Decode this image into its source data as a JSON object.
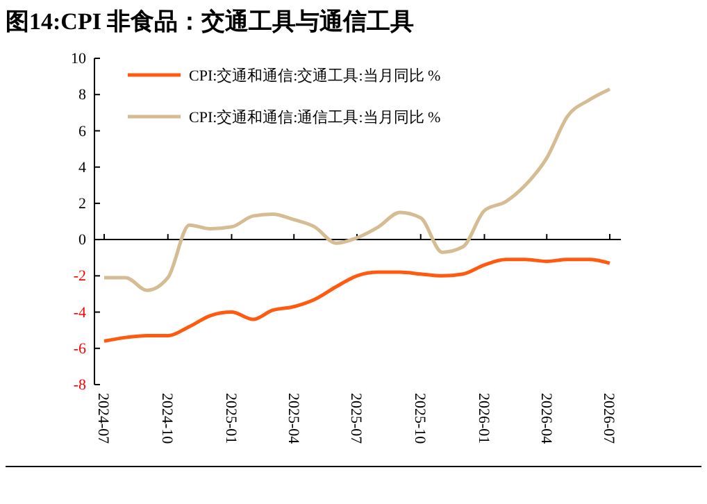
{
  "chart_data": {
    "type": "line",
    "title": "图14:CPI 非食品：交通工具与通信工具",
    "x": [
      "2024-07",
      "2024-08",
      "2024-09",
      "2024-10",
      "2024-11",
      "2024-12",
      "2025-01",
      "2025-02",
      "2025-03",
      "2025-04",
      "2025-05",
      "2025-06",
      "2025-07",
      "2025-08",
      "2025-09",
      "2025-10",
      "2025-11",
      "2025-12",
      "2026-01",
      "2026-02",
      "2026-03",
      "2026-04",
      "2026-05",
      "2026-06",
      "2026-07"
    ],
    "series": [
      {
        "name": "CPI:交通和通信:交通工具:当月同比 %",
        "color": "#ff5a0f",
        "values": [
          -5.6,
          -5.4,
          -5.3,
          -5.3,
          -4.8,
          -4.2,
          -4.0,
          -4.4,
          -3.9,
          -3.7,
          -3.3,
          -2.6,
          -2.0,
          -1.8,
          -1.8,
          -1.9,
          -2.0,
          -1.9,
          -1.4,
          -1.1,
          -1.1,
          -1.2,
          -1.1,
          -1.1,
          -1.3
        ]
      },
      {
        "name": "CPI:交通和通信:通信工具:当月同比 %",
        "color": "#d6bc93",
        "values": [
          -2.1,
          -2.1,
          -2.8,
          -2.1,
          0.8,
          0.6,
          0.7,
          1.3,
          1.4,
          1.1,
          0.7,
          -0.2,
          0.1,
          0.7,
          1.5,
          1.2,
          -0.7,
          -0.4,
          1.6,
          2.1,
          3.0,
          4.5,
          6.8,
          7.7,
          8.3
        ]
      }
    ],
    "xlim": [
      "2024-07",
      "2026-07"
    ],
    "xticks": [
      "2024-07",
      "2024-10",
      "2025-01",
      "2025-04",
      "2025-07",
      "2025-10",
      "2026-01",
      "2026-04",
      "2026-07"
    ],
    "ylim": [
      -8,
      10
    ],
    "yticks": [
      -8,
      -6,
      -4,
      -2,
      0,
      2,
      4,
      6,
      8,
      10
    ],
    "legend": "top left",
    "line_style": "solid",
    "marker": "none"
  }
}
